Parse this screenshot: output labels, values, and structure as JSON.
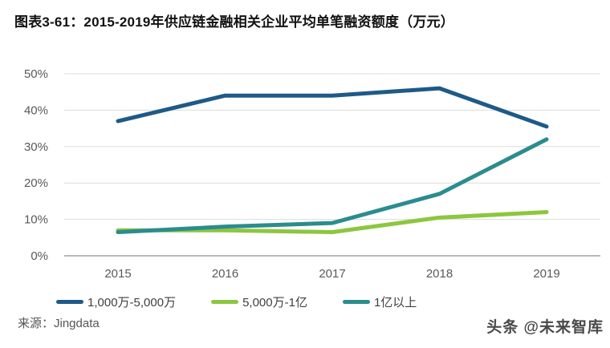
{
  "page": {
    "title": "图表3-61：2015-2019年供应链金融相关企业平均单笔融资额度（万元）",
    "source": "来源：Jingdata",
    "watermark": "头条 @未来智库"
  },
  "colors": {
    "grid": "#dcdcdc",
    "axis_line": "#a0a0a0",
    "tick_label": "#595959",
    "legend_label": "#404040",
    "title_text": "#111111",
    "watermark_text": "#4a4a4a",
    "series_blue": "#1e5a87",
    "series_green": "#8dc63f",
    "series_teal": "#2b8c8e"
  },
  "chart_data": {
    "type": "line",
    "title": "2015-2019年供应链金融相关企业平均单笔融资额度（万元）",
    "categories": [
      "2015",
      "2016",
      "2017",
      "2018",
      "2019"
    ],
    "series": [
      {
        "name": "1,000万-5,000万",
        "color": "#1e5a87",
        "values": [
          37,
          44,
          44,
          46,
          35.5
        ]
      },
      {
        "name": "5,000万-1亿",
        "color": "#8dc63f",
        "values": [
          7,
          7,
          6.5,
          10.5,
          12
        ]
      },
      {
        "name": "1亿以上",
        "color": "#2b8c8e",
        "values": [
          6.5,
          8,
          9,
          17,
          32
        ]
      }
    ],
    "ylim": [
      0,
      50
    ],
    "yticks": [
      0,
      10,
      20,
      30,
      40,
      50
    ],
    "ytick_suffix": "%",
    "grid": "horizontal-only",
    "legend_position": "bottom",
    "xlabel": "",
    "ylabel": ""
  }
}
